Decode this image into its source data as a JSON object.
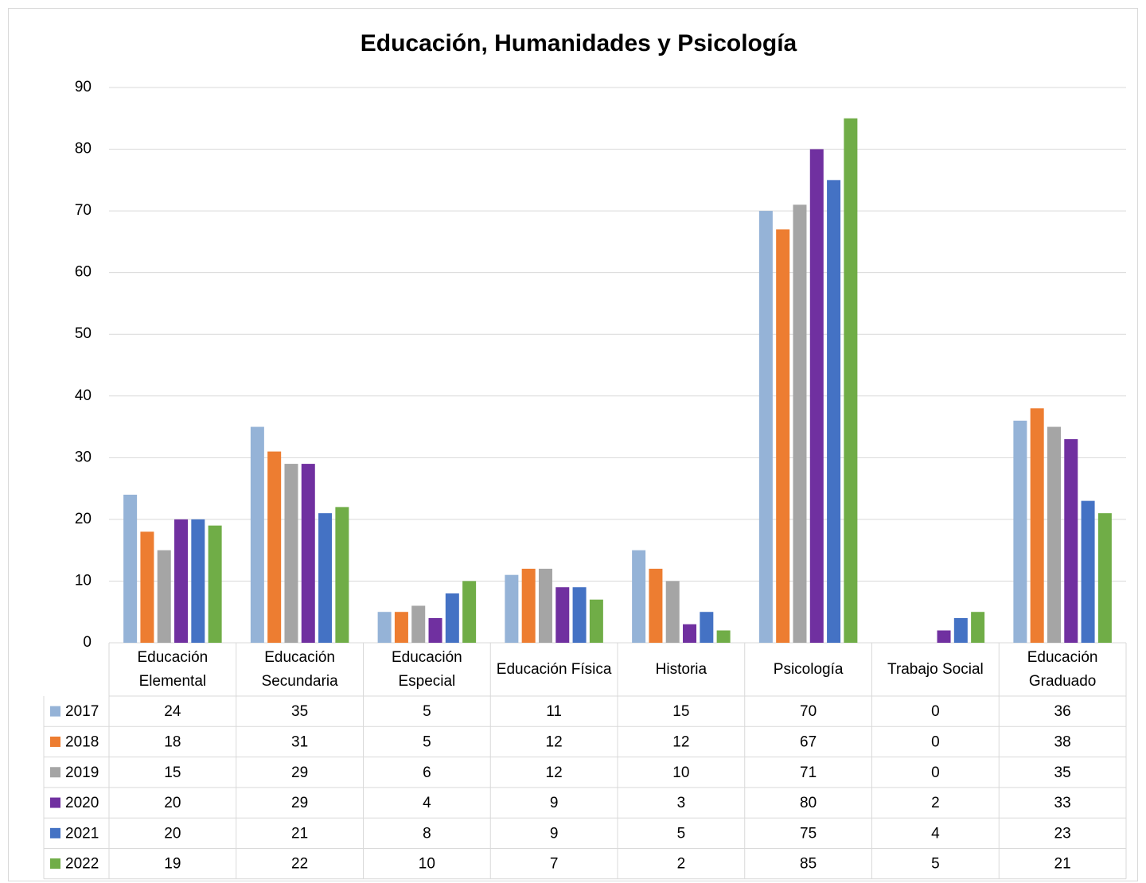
{
  "chart_data": {
    "type": "bar",
    "title": "Educación, Humanidades y Psicología",
    "categories": [
      "Educación Elemental",
      "Educación Secundaria",
      "Educación Especial",
      "Educación Física",
      "Historia",
      "Psicología",
      "Trabajo Social",
      "Educación Graduado"
    ],
    "series": [
      {
        "name": "2017",
        "color": "#95b3d7",
        "values": [
          24,
          35,
          5,
          11,
          15,
          70,
          0,
          36
        ]
      },
      {
        "name": "2018",
        "color": "#ed7d31",
        "values": [
          18,
          31,
          5,
          12,
          12,
          67,
          0,
          38
        ]
      },
      {
        "name": "2019",
        "color": "#a5a5a5",
        "values": [
          15,
          29,
          6,
          12,
          10,
          71,
          0,
          35
        ]
      },
      {
        "name": "2020",
        "color": "#7030a0",
        "values": [
          20,
          29,
          4,
          9,
          3,
          80,
          2,
          33
        ]
      },
      {
        "name": "2021",
        "color": "#4472c4",
        "values": [
          20,
          21,
          8,
          9,
          5,
          75,
          4,
          23
        ]
      },
      {
        "name": "2022",
        "color": "#70ad47",
        "values": [
          19,
          22,
          10,
          7,
          2,
          85,
          5,
          21
        ]
      }
    ],
    "ylim": [
      0,
      90
    ],
    "yticks": [
      0,
      10,
      20,
      30,
      40,
      50,
      60,
      70,
      80,
      90
    ],
    "grid": true,
    "data_table": true
  }
}
